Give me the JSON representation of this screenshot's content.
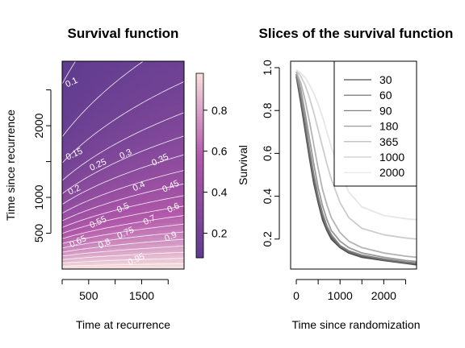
{
  "chart_data": [
    {
      "type": "heatmap",
      "title": "Survival function",
      "xlabel": "Time at recurrence",
      "ylabel": "Time since recurrence",
      "xlim": [
        0,
        2300
      ],
      "ylim": [
        0,
        2900
      ],
      "xticks": [
        500,
        1500
      ],
      "x_minor_ticks": [
        0,
        1000,
        2000
      ],
      "yticks": [
        500,
        1000,
        2000
      ],
      "y_minor_ticks": [
        1500,
        2500
      ],
      "colorbar": {
        "label": "Survival",
        "range": [
          0.08,
          0.98
        ],
        "ticks": [
          0.2,
          0.4,
          0.6,
          0.8
        ],
        "low_color": "#5e3c8e",
        "high_color": "#f7dede"
      },
      "contour_levels": [
        0.1,
        0.15,
        0.2,
        0.25,
        0.3,
        0.35,
        0.4,
        0.45,
        0.5,
        0.55,
        0.6,
        0.65,
        0.7,
        0.75,
        0.8,
        0.85,
        0.9,
        0.95
      ],
      "contour_labels": [
        {
          "text": "0.1",
          "x": 180,
          "y": 2600
        },
        {
          "text": "0.15",
          "x": 230,
          "y": 1600
        },
        {
          "text": "0.2",
          "x": 230,
          "y": 1100
        },
        {
          "text": "0.25",
          "x": 680,
          "y": 1450
        },
        {
          "text": "0.3",
          "x": 1200,
          "y": 1600
        },
        {
          "text": "0.35",
          "x": 1850,
          "y": 1520
        },
        {
          "text": "0.4",
          "x": 1450,
          "y": 1150
        },
        {
          "text": "0.45",
          "x": 2050,
          "y": 1150
        },
        {
          "text": "0.5",
          "x": 1150,
          "y": 850
        },
        {
          "text": "0.55",
          "x": 680,
          "y": 650
        },
        {
          "text": "0.6",
          "x": 2100,
          "y": 850
        },
        {
          "text": "0.65",
          "x": 300,
          "y": 380
        },
        {
          "text": "0.7",
          "x": 1650,
          "y": 680
        },
        {
          "text": "0.75",
          "x": 1200,
          "y": 500
        },
        {
          "text": "0.8",
          "x": 800,
          "y": 350
        },
        {
          "text": "0.9",
          "x": 2050,
          "y": 450
        },
        {
          "text": "0.95",
          "x": 1400,
          "y": 130
        }
      ]
    },
    {
      "type": "line",
      "title": "Slices of the survival function",
      "xlabel": "Time since randomization",
      "ylabel": "",
      "xlim": [
        -130,
        2750
      ],
      "ylim": [
        0.06,
        1.03
      ],
      "xticks": [
        0,
        1000,
        2000
      ],
      "x_minor_ticks": [
        500,
        1500,
        2500
      ],
      "yticks": [
        0.2,
        0.4,
        0.6,
        0.8,
        1.0
      ],
      "ytick_labels": [
        "0.2",
        "0.4",
        "0.6",
        "0.8",
        "1.0"
      ],
      "legend_position": "top-right",
      "series": [
        {
          "name": "30",
          "color": "#4d4d4d",
          "x": [
            0,
            100,
            200,
            300,
            400,
            500,
            600,
            700,
            800,
            1000,
            1200,
            1500,
            2000,
            2500,
            2750
          ],
          "y": [
            0.96,
            0.84,
            0.71,
            0.58,
            0.46,
            0.37,
            0.29,
            0.24,
            0.2,
            0.16,
            0.135,
            0.115,
            0.1,
            0.087,
            0.08
          ]
        },
        {
          "name": "60",
          "color": "#666666",
          "x": [
            0,
            100,
            200,
            300,
            400,
            500,
            600,
            700,
            800,
            1000,
            1200,
            1500,
            2000,
            2500,
            2750
          ],
          "y": [
            0.97,
            0.86,
            0.73,
            0.6,
            0.48,
            0.385,
            0.305,
            0.25,
            0.21,
            0.165,
            0.14,
            0.12,
            0.103,
            0.09,
            0.085
          ]
        },
        {
          "name": "90",
          "color": "#808080",
          "x": [
            0,
            100,
            200,
            300,
            400,
            500,
            600,
            700,
            800,
            1000,
            1200,
            1500,
            2000,
            2500,
            2750
          ],
          "y": [
            0.97,
            0.87,
            0.75,
            0.62,
            0.5,
            0.4,
            0.32,
            0.26,
            0.22,
            0.17,
            0.145,
            0.125,
            0.107,
            0.093,
            0.088
          ]
        },
        {
          "name": "180",
          "color": "#999999",
          "x": [
            0,
            100,
            200,
            300,
            400,
            500,
            600,
            700,
            800,
            1000,
            1200,
            1500,
            2000,
            2500,
            2750
          ],
          "y": [
            0.98,
            0.9,
            0.79,
            0.67,
            0.55,
            0.44,
            0.355,
            0.29,
            0.24,
            0.19,
            0.16,
            0.135,
            0.115,
            0.1,
            0.095
          ]
        },
        {
          "name": "365",
          "color": "#b3b3b3",
          "x": [
            0,
            100,
            200,
            300,
            400,
            500,
            600,
            700,
            800,
            1000,
            1200,
            1500,
            2000,
            2500,
            2750
          ],
          "y": [
            0.98,
            0.93,
            0.85,
            0.75,
            0.64,
            0.53,
            0.43,
            0.36,
            0.3,
            0.23,
            0.19,
            0.16,
            0.135,
            0.12,
            0.115
          ]
        },
        {
          "name": "1000",
          "color": "#cccccc",
          "x": [
            0,
            100,
            200,
            300,
            400,
            500,
            600,
            700,
            800,
            1000,
            1200,
            1500,
            2000,
            2500,
            2750
          ],
          "y": [
            0.99,
            0.96,
            0.92,
            0.86,
            0.79,
            0.71,
            0.63,
            0.55,
            0.48,
            0.37,
            0.3,
            0.25,
            0.22,
            0.205,
            0.2
          ]
        },
        {
          "name": "2000",
          "color": "#e6e6e6",
          "x": [
            0,
            100,
            200,
            300,
            400,
            500,
            600,
            700,
            800,
            1000,
            1200,
            1500,
            2000,
            2500,
            2750
          ],
          "y": [
            0.99,
            0.975,
            0.955,
            0.92,
            0.88,
            0.83,
            0.77,
            0.7,
            0.63,
            0.51,
            0.42,
            0.35,
            0.31,
            0.295,
            0.29
          ]
        }
      ]
    }
  ]
}
